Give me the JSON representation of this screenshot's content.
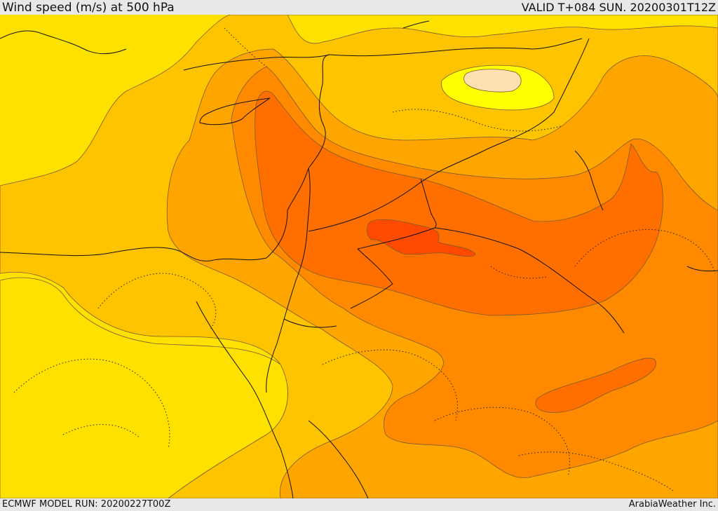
{
  "header": {
    "title": "Wind speed (m/s) at 500 hPa",
    "valid": "VALID T+084 SUN. 20200301T12Z"
  },
  "footer": {
    "model_run": "ECMWF MODEL RUN: 20200227T00Z",
    "credit": "ArabiaWeather Inc."
  },
  "map": {
    "variable": "wind speed",
    "level_hpa": 500,
    "units": "m/s",
    "fill_colors": {
      "lightest": "#ffe100",
      "light": "#ffc400",
      "mid_low": "#ffa500",
      "mid": "#ff8a00",
      "mid_high": "#ff6f00",
      "high": "#ff4a00",
      "calm_yellow": "#ffff00",
      "calm_pale": "#ffe0b0"
    }
  }
}
